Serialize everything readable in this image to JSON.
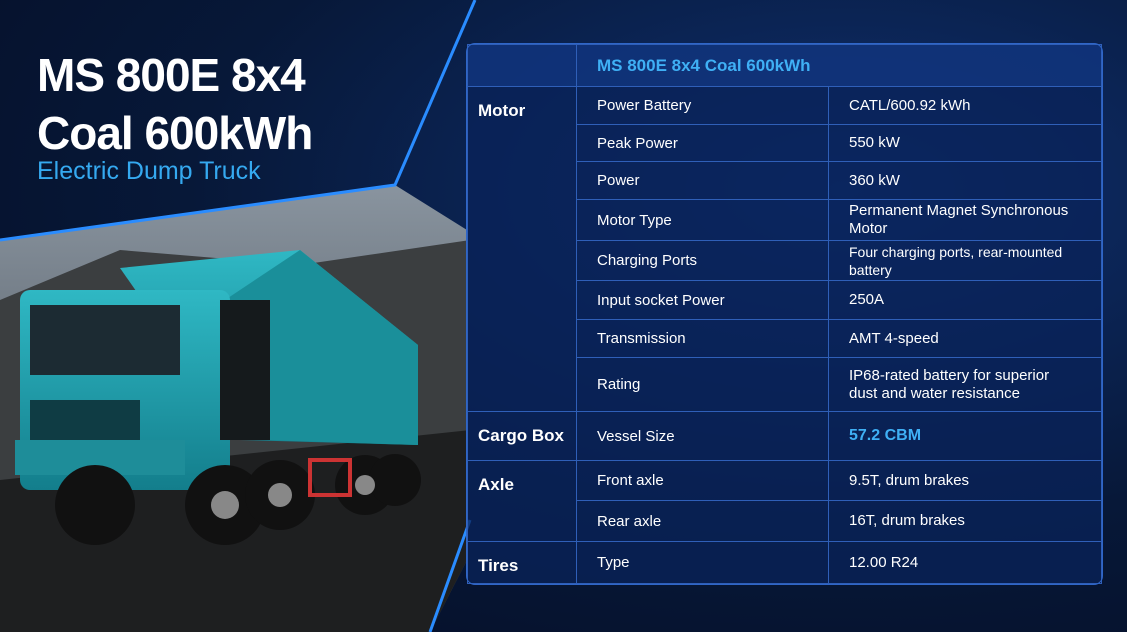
{
  "header": {
    "title": "MS 800E 8x4 Coal 600kWh",
    "subtitle": "Electric Dump Truck"
  },
  "table": {
    "header": "MS 800E 8x4 Coal 600kWh",
    "groups": [
      {
        "name": "Motor",
        "rows": [
          [
            "Power Battery",
            "CATL/600.92 kWh"
          ],
          [
            "Peak Power",
            "550 kW"
          ],
          [
            "Power",
            "360 kW"
          ],
          [
            "Motor Type",
            "Permanent Magnet Synchronous Motor"
          ],
          [
            "Charging Ports",
            "Four charging ports, rear-mounted battery"
          ],
          [
            "Input socket Power",
            "250A"
          ],
          [
            "Transmission",
            "AMT 4-speed"
          ],
          [
            "Rating",
            "IP68-rated battery for superior dust and water resistance"
          ]
        ]
      },
      {
        "name": "Cargo Box",
        "rows": [
          [
            "Vessel Size",
            "57.2 CBM"
          ]
        ]
      },
      {
        "name": "Axle",
        "rows": [
          [
            "Front axle",
            "9.5T, drum brakes"
          ],
          [
            "Rear axle",
            "16T, drum brakes"
          ]
        ]
      },
      {
        "name": "Tires",
        "rows": [
          [
            "Type",
            "12.00 R24"
          ]
        ]
      }
    ]
  }
}
